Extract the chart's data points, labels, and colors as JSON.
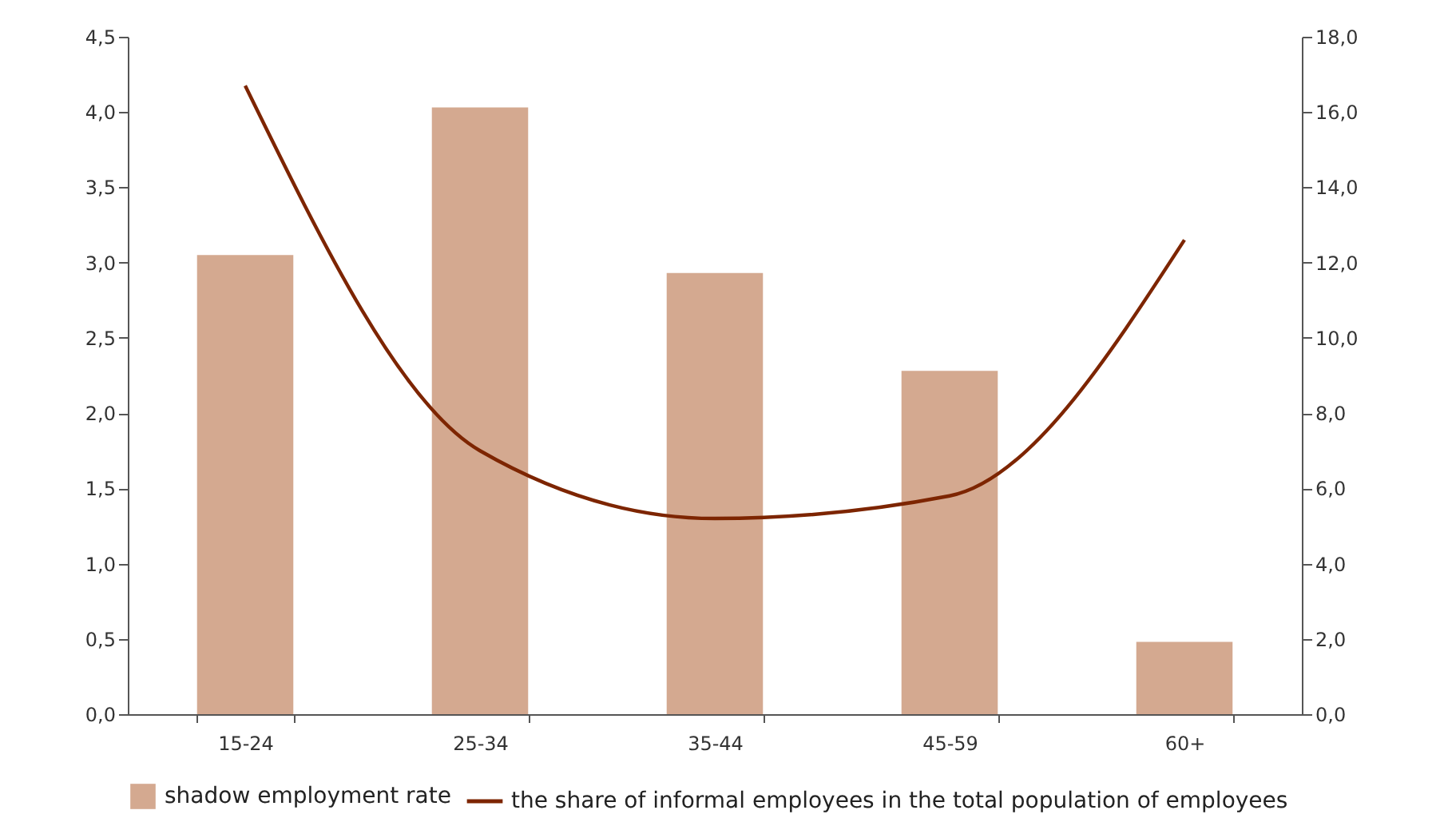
{
  "chart_data": {
    "type": "bar",
    "categories": [
      "15-24",
      "25-34",
      "35-44",
      "45-59",
      "60+"
    ],
    "series": [
      {
        "name": "shadow employment rate",
        "color": "#d4a990",
        "values": [
          3.05,
          4.03,
          2.93,
          2.28,
          0.48
        ]
      },
      {
        "name": "the share of informal employees in the total population of employees",
        "type": "line",
        "axis": "y2",
        "color": "#7d2500",
        "values": [
          16.7,
          7.0,
          5.2,
          5.8,
          12.6
        ]
      }
    ],
    "ylim": [
      0,
      4.5
    ],
    "yticks": [
      {
        "value": 0,
        "label": "0,0"
      },
      {
        "value": 0.5,
        "label": "0,5"
      },
      {
        "value": 1,
        "label": "1,0"
      },
      {
        "value": 1.5,
        "label": "1,5"
      },
      {
        "value": 2,
        "label": "2,0"
      },
      {
        "value": 2.5,
        "label": "2,5"
      },
      {
        "value": 3,
        "label": "3,0"
      },
      {
        "value": 3.5,
        "label": "3,5"
      },
      {
        "value": 4,
        "label": "4,0"
      },
      {
        "value": 4.5,
        "label": "4,5"
      }
    ],
    "y2lim": [
      0,
      18
    ],
    "y2ticks": [
      {
        "value": 0,
        "label": "0,0"
      },
      {
        "value": 2,
        "label": "2,0"
      },
      {
        "value": 4,
        "label": "4,0"
      },
      {
        "value": 6,
        "label": "6,0"
      },
      {
        "value": 8,
        "label": "8,0"
      },
      {
        "value": 10,
        "label": "10,0"
      },
      {
        "value": 12,
        "label": "12,0"
      },
      {
        "value": 14,
        "label": "14,0"
      },
      {
        "value": 16,
        "label": "16,0"
      },
      {
        "value": 18,
        "label": "18,0"
      }
    ],
    "grid": false,
    "legend": "bottom"
  }
}
